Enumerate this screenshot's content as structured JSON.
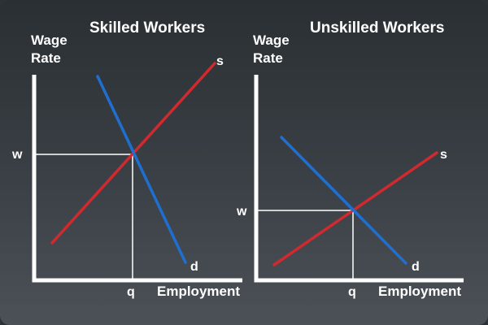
{
  "panels": [
    {
      "title": "Skilled Workers",
      "y_axis_label_line1": "Wage",
      "y_axis_label_line2": "Rate",
      "x_axis_label": "Employment",
      "wage_label": "w",
      "quantity_label": "q",
      "supply_label": "s",
      "demand_label": "d"
    },
    {
      "title": "Unskilled Workers",
      "y_axis_label_line1": "Wage",
      "y_axis_label_line2": "Rate",
      "x_axis_label": "Employment",
      "wage_label": "w",
      "quantity_label": "q",
      "supply_label": "s",
      "demand_label": "d"
    }
  ],
  "colors": {
    "supply": "#d02a2f",
    "demand": "#1f6fd1",
    "axes": "#ffffff",
    "guides": "#ffffff",
    "text": "#ffffff"
  }
}
